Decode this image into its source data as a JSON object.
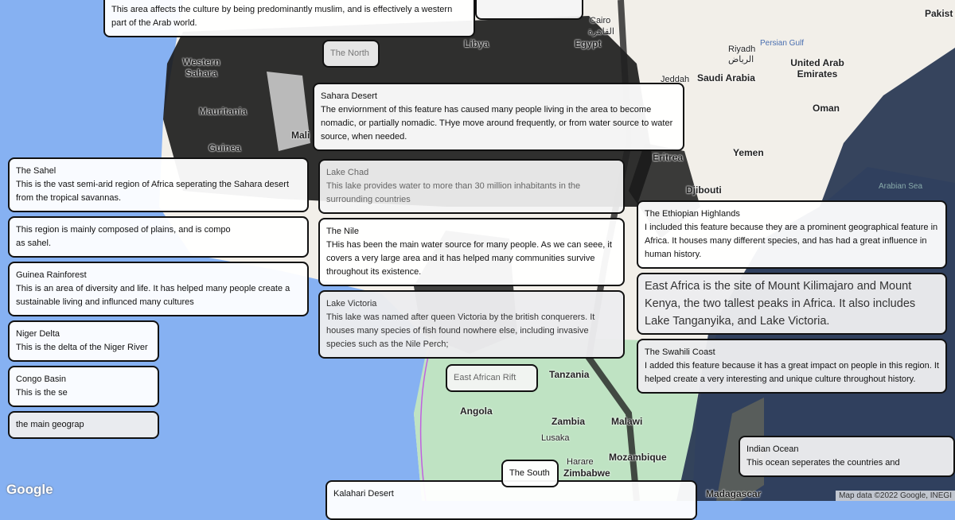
{
  "map_labels": {
    "libya": "Libya",
    "egypt": "Egypt",
    "cairo": "Cairo",
    "cairo_ar": "القاهرة",
    "saudi": "Saudi Arabia",
    "riyadh": "Riyadh",
    "riyadh_ar": "الرياض",
    "uae": "United Arab Emirates",
    "oman": "Oman",
    "yemen": "Yemen",
    "eritrea": "Eritrea",
    "djibouti": "Djibouti",
    "pakistan": "Pakist",
    "persian_gulf": "Persian Gulf",
    "arabian_sea": "Arabian Sea",
    "jeddah": "Jeddah",
    "western_sahara": "Western Sahara",
    "mauritania": "Mauritania",
    "mali": "Mali",
    "angola": "Angola",
    "zambia": "Zambia",
    "malawi": "Malawi",
    "lusaka": "Lusaka",
    "harare": "Harare",
    "mozambique": "Mozambique",
    "zimbabwe": "Zimbabwe",
    "madagascar": "Madagascar",
    "tanzania": "Tanzania",
    "guinea": "Guinea"
  },
  "boxes": {
    "north_africa": {
      "body": "This area affects the culture by being predominantly muslim, and is effectively a western part of the Arab world."
    },
    "the_north": {
      "title": "The North"
    },
    "sahara": {
      "title": "Sahara Desert",
      "body": "The enviornment of this feature has caused many people living in the area to become nomadic, or partially nomadic. THye move around frequently, or from water source to water source, when needed."
    },
    "lake_chad": {
      "title": "Lake Chad",
      "body": "This lake provides water to more than 30 million inhabitants in the surrounding countries"
    },
    "sahel": {
      "title": "The Sahel",
      "body": "This is the vast semi-arid region of Africa seperating the Sahara desert from the tropical savannas."
    },
    "west_africa": {
      "body": "This region is mainly composed of plains, and is compo",
      "body2": "as sahel."
    },
    "guinea": {
      "title": "Guinea Rainforest",
      "body": "This is an area of diversity and life. It has helped many people create a sustainable living and influnced many cultures"
    },
    "niger": {
      "title": "Niger Delta",
      "body": "This is the delta of the Niger River"
    },
    "east_africa": {
      "body": "East Africa is the site of Mount Kilimajaro and Mount Kenya, the two tallest peaks in Africa. It also includes Lake Tanganyika, and Lake Victoria."
    },
    "ethiopia": {
      "title": "The Ethiopian Highlands",
      "body": "I included this feature because they are a prominent geographical feature in Africa. It houses many different species, and has had a great influence in human history."
    },
    "congo": {
      "title": "Congo Basin",
      "body": "This is the se"
    },
    "central": {
      "body": "the main geograp"
    },
    "victoria": {
      "title": "Lake Victoria",
      "body": "This lake was named after queen Victoria by the british conquerers. It houses many species of fish found nowhere else, including invasive species such as the Nile Perch;"
    },
    "nile": {
      "title": "The Nile",
      "body": "THis has been the main water source for many people. As we can seee, it covers a very large area and it has helped many communities survive throughout its existence."
    },
    "swahili": {
      "title": "The Swahili Coast",
      "body": "I added this feature because it has a great impact on people in this region. It helped create a very interesting and unique culture throughout history."
    },
    "rift": {
      "title": "East African Rift"
    },
    "indian": {
      "title": "Indian Ocean",
      "body": "This ocean seperates the countries and"
    },
    "south": {
      "title": "The South"
    },
    "kalahari": {
      "title": "Kalahari Desert"
    }
  },
  "footer": {
    "google": "Google",
    "attribution": "Map data ©2022 Google, INEGI"
  },
  "colors": {
    "ocean": "#86b1f2",
    "land": "#f2efe9",
    "overlay": "#1a1a1a",
    "indian_ocean_overlay": "#2b3a55"
  }
}
